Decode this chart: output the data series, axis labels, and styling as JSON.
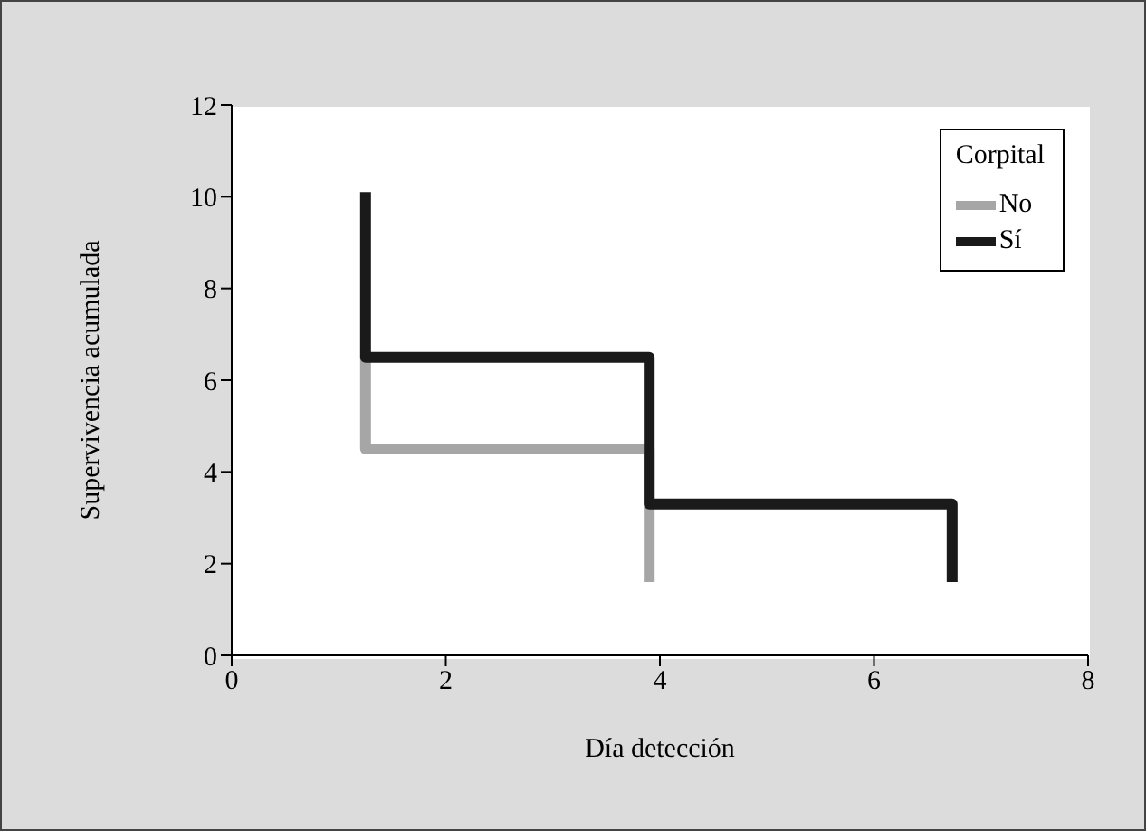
{
  "chart_data": {
    "type": "step",
    "xlabel": "Día detección",
    "ylabel": "Supervivencia acumulada",
    "legend_title": "Corpital",
    "series": [
      {
        "name": "No",
        "color": "#a6a6a6",
        "x": [
          1.25,
          1.25,
          3.9,
          3.9
        ],
        "values": [
          6.5,
          4.5,
          4.5,
          1.6
        ]
      },
      {
        "name": "Sí",
        "color": "#1a1a1a",
        "x": [
          1.25,
          1.25,
          3.9,
          3.9,
          6.73,
          6.73
        ],
        "values": [
          10.1,
          6.5,
          6.5,
          3.3,
          3.3,
          1.6
        ]
      }
    ],
    "xlim": [
      0,
      8
    ],
    "xticks": [
      0,
      2,
      4,
      6,
      8
    ],
    "ylim": [
      0,
      12
    ],
    "yticks": [
      0,
      2,
      4,
      6,
      8,
      10,
      12
    ],
    "grid": false,
    "legend": "top right",
    "marker": "none",
    "line_style": "solid"
  }
}
